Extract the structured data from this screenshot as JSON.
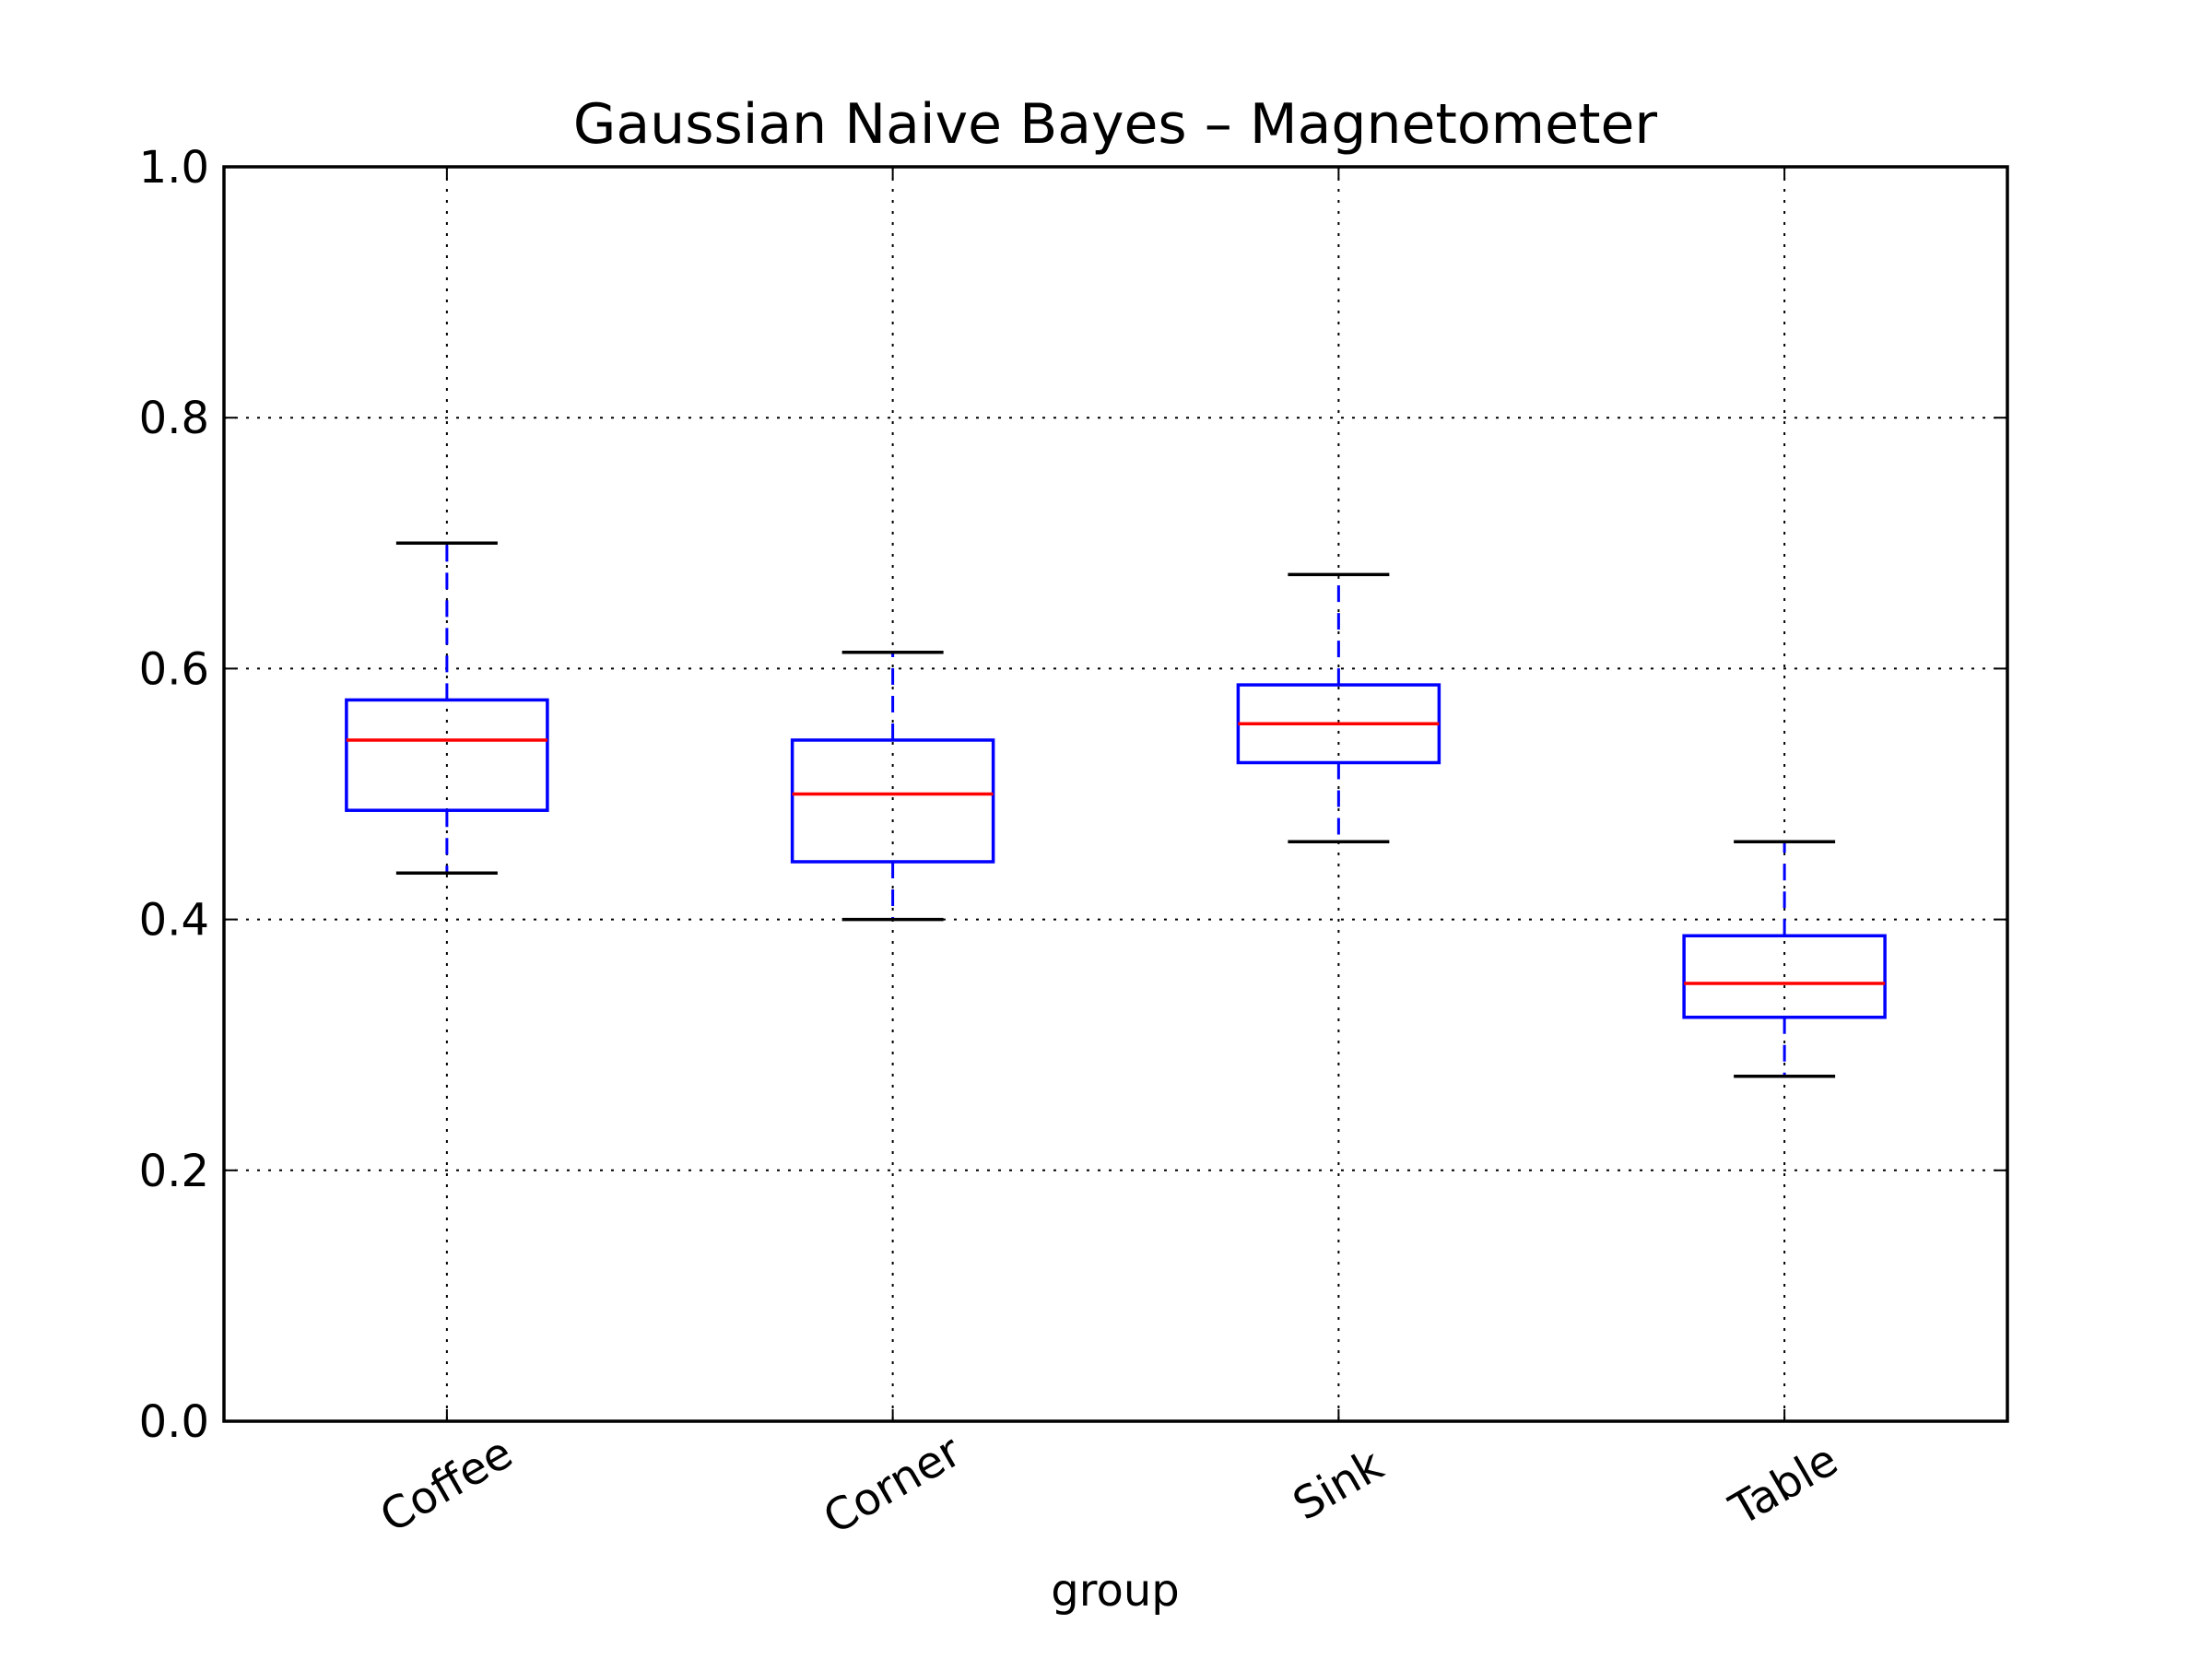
{
  "chart_data": {
    "type": "box",
    "title": "Gaussian Naive Bayes – Magnetometer",
    "xlabel": "group",
    "ylabel": "",
    "ylim": [
      0.0,
      1.0
    ],
    "yticks": [
      "0.0",
      "0.2",
      "0.4",
      "0.6",
      "0.8",
      "1.0"
    ],
    "grid": true,
    "categories": [
      "Coffee",
      "Corner",
      "Sink",
      "Table"
    ],
    "boxes": [
      {
        "label": "Coffee",
        "whisker_low": 0.437,
        "q1": 0.487,
        "median": 0.543,
        "q3": 0.575,
        "whisker_high": 0.7
      },
      {
        "label": "Corner",
        "whisker_low": 0.4,
        "q1": 0.446,
        "median": 0.5,
        "q3": 0.543,
        "whisker_high": 0.613
      },
      {
        "label": "Sink",
        "whisker_low": 0.462,
        "q1": 0.525,
        "median": 0.556,
        "q3": 0.587,
        "whisker_high": 0.675
      },
      {
        "label": "Table",
        "whisker_low": 0.275,
        "q1": 0.322,
        "median": 0.349,
        "q3": 0.387,
        "whisker_high": 0.462
      }
    ],
    "colors": {
      "box": "#0000ff",
      "median": "#ff0000",
      "whisker": "#0000ff",
      "cap": "#000000",
      "grid": "#000000"
    }
  }
}
